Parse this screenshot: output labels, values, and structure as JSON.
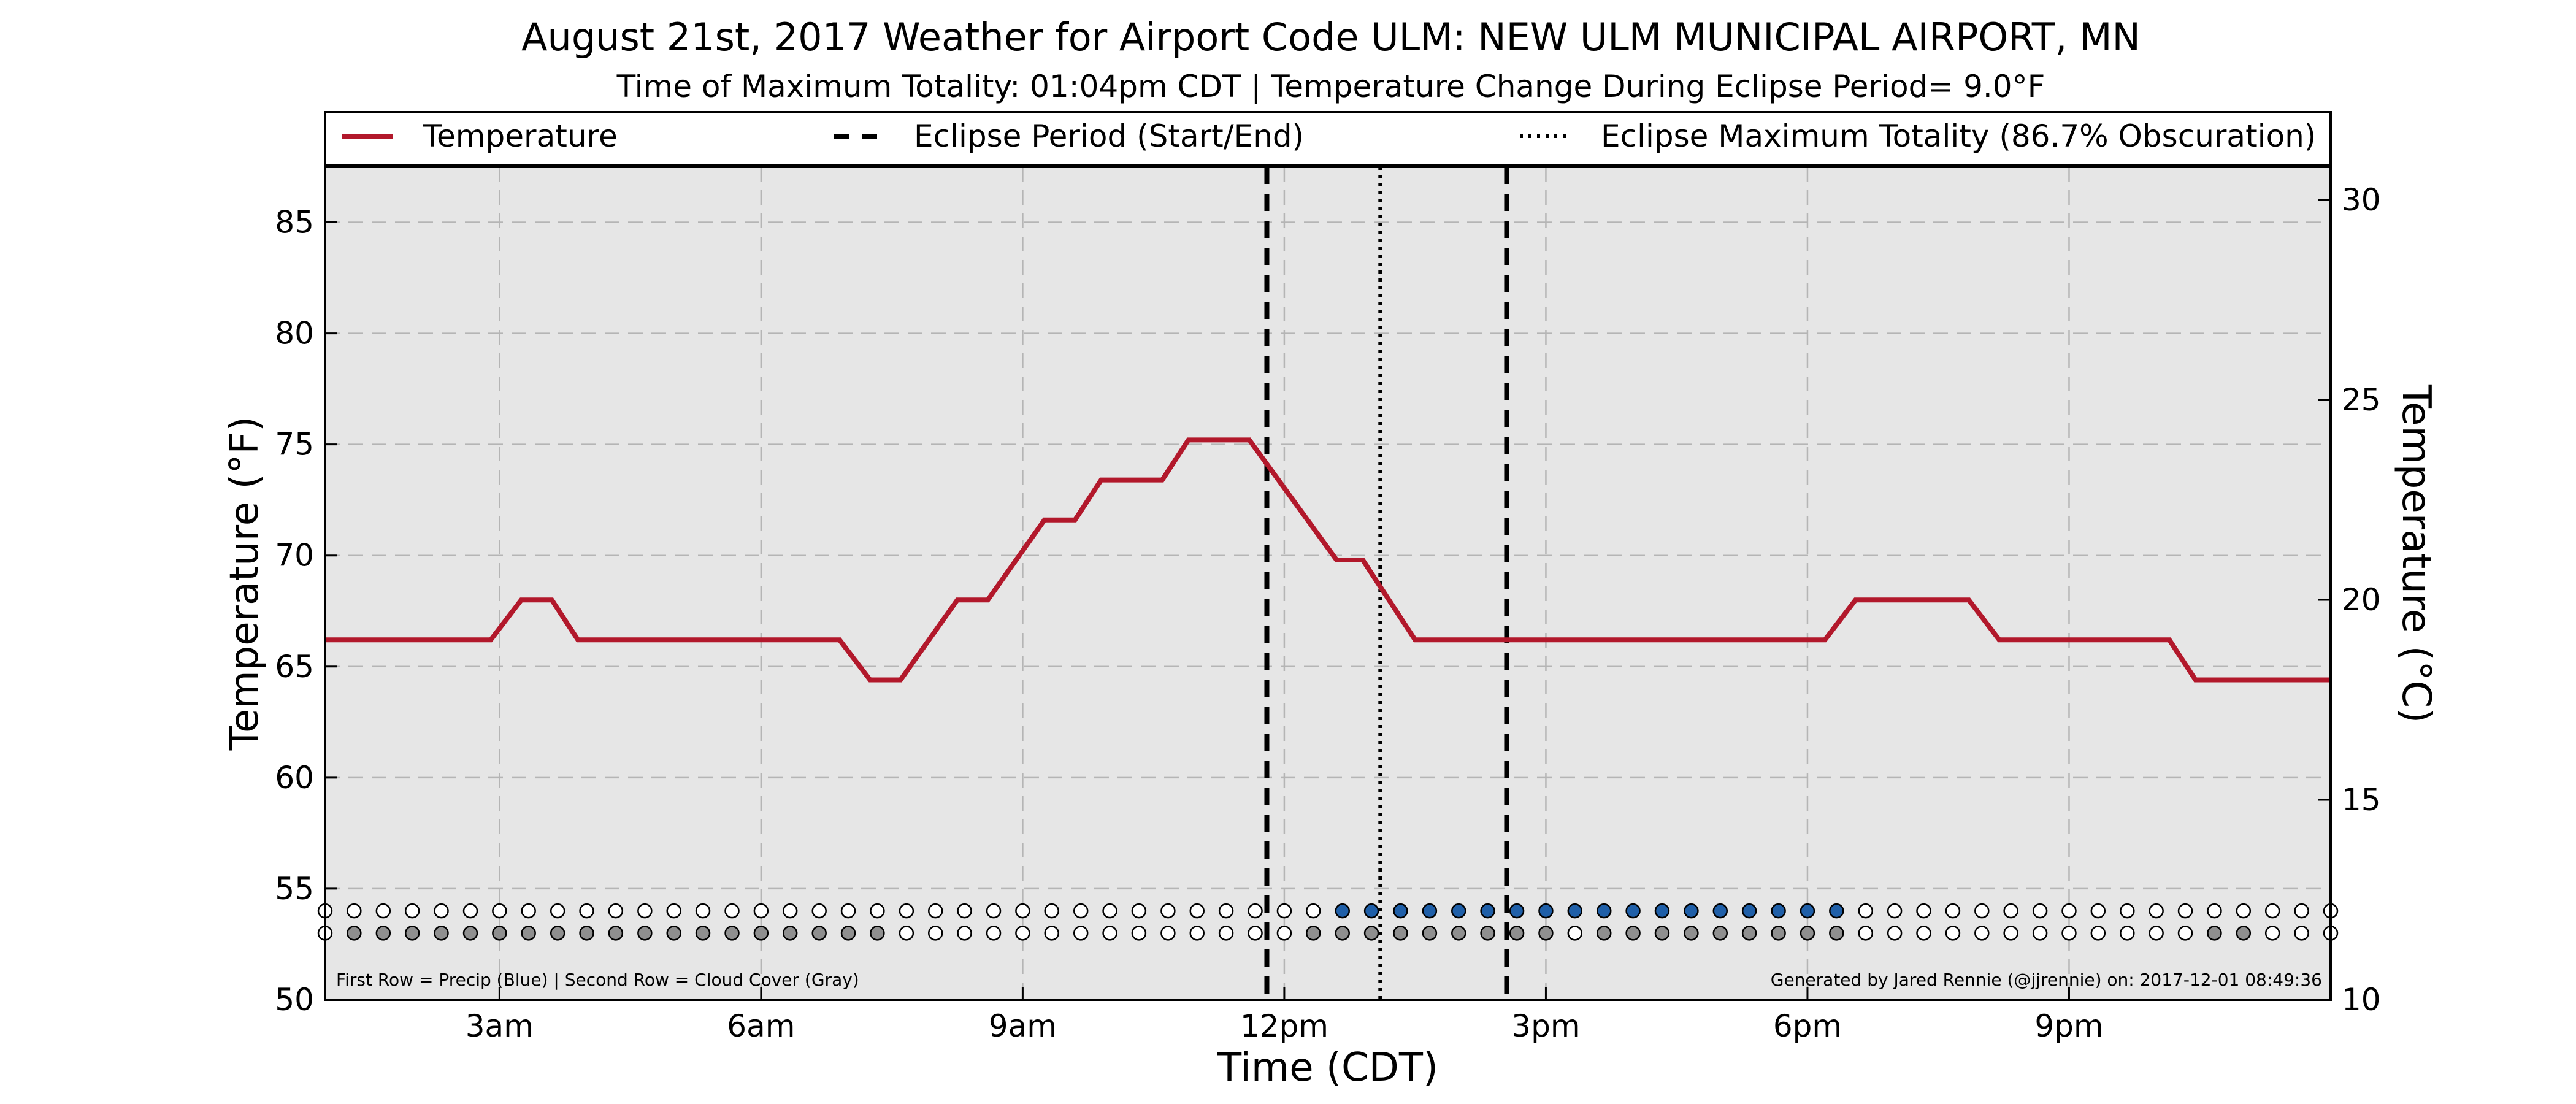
{
  "chart_data": {
    "type": "line",
    "title": "August 21st, 2017 Weather for Airport Code ULM: NEW ULM MUNICIPAL AIRPORT, MN",
    "subtitle": "Time of Maximum Totality: 01:04pm CDT | Temperature Change During Eclipse Period= 9.0°F",
    "xlabel": "Time (CDT)",
    "ylabel_left": "Temperature (°F)",
    "ylabel_right": "Temperature (°C)",
    "x_ticks": [
      {
        "hour": 3,
        "label": "3am"
      },
      {
        "hour": 6,
        "label": "6am"
      },
      {
        "hour": 9,
        "label": "9am"
      },
      {
        "hour": 12,
        "label": "12pm"
      },
      {
        "hour": 15,
        "label": "3pm"
      },
      {
        "hour": 18,
        "label": "6pm"
      },
      {
        "hour": 21,
        "label": "9pm"
      }
    ],
    "y_ticks_left": [
      50,
      55,
      60,
      65,
      70,
      75,
      80,
      85
    ],
    "y_ticks_right": [
      10,
      15,
      20,
      25,
      30
    ],
    "xlim_hours": [
      1.0,
      24.0
    ],
    "ylim_f": [
      50,
      87.5
    ],
    "ylim_c": [
      10,
      30.83
    ],
    "grid": true,
    "legend": {
      "placement": "top",
      "entries": [
        {
          "label": "Temperature",
          "style": "solid",
          "color": "#b2182b"
        },
        {
          "label": "Eclipse Period (Start/End)",
          "style": "dashed",
          "color": "#000000"
        },
        {
          "label": "Eclipse Maximum Totality (86.7% Obscuration)",
          "style": "dotted",
          "color": "#000000"
        }
      ]
    },
    "series": [
      {
        "name": "Temperature",
        "color": "#b2182b",
        "x_hours": [
          1.0,
          2.9,
          3.25,
          3.6,
          3.9,
          6.9,
          7.25,
          7.6,
          8.25,
          8.6,
          9.25,
          9.6,
          9.9,
          10.6,
          10.9,
          11.6,
          12.6,
          12.9,
          13.5,
          15.0,
          18.2,
          18.55,
          19.85,
          20.2,
          22.15,
          22.45,
          24.0
        ],
        "temp_f": [
          66.2,
          66.2,
          68.0,
          68.0,
          66.2,
          66.2,
          64.4,
          64.4,
          68.0,
          68.0,
          71.6,
          71.6,
          73.4,
          73.4,
          75.2,
          75.2,
          69.8,
          69.8,
          66.2,
          66.2,
          66.2,
          68.0,
          68.0,
          66.2,
          66.2,
          64.4,
          64.4
        ]
      }
    ],
    "eclipse_start_hour": 11.8,
    "eclipse_end_hour": 14.55,
    "eclipse_max_hour": 13.1,
    "precip_row": {
      "label": "Precip",
      "color_on": "#1f5fa8",
      "color_off": "#ffffff",
      "y_f": 54.0,
      "x_hours": [
        1.0,
        1.333,
        1.667,
        2.0,
        2.333,
        2.667,
        3.0,
        3.333,
        3.667,
        4.0,
        4.333,
        4.667,
        5.0,
        5.333,
        5.667,
        6.0,
        6.333,
        6.667,
        7.0,
        7.333,
        7.667,
        8.0,
        8.333,
        8.667,
        9.0,
        9.333,
        9.667,
        10.0,
        10.333,
        10.667,
        11.0,
        11.333,
        11.667,
        12.0,
        12.333,
        12.667,
        13.0,
        13.333,
        13.667,
        14.0,
        14.333,
        14.667,
        15.0,
        15.333,
        15.667,
        16.0,
        16.333,
        16.667,
        17.0,
        17.333,
        17.667,
        18.0,
        18.333,
        18.667,
        19.0,
        19.333,
        19.667,
        20.0,
        20.333,
        20.667,
        21.0,
        21.333,
        21.667,
        22.0,
        22.333,
        22.667,
        23.0,
        23.333,
        23.667,
        24.0
      ],
      "values": [
        0,
        0,
        0,
        0,
        0,
        0,
        0,
        0,
        0,
        0,
        0,
        0,
        0,
        0,
        0,
        0,
        0,
        0,
        0,
        0,
        0,
        0,
        0,
        0,
        0,
        0,
        0,
        0,
        0,
        0,
        0,
        0,
        0,
        0,
        0,
        1,
        1,
        1,
        1,
        1,
        1,
        1,
        1,
        1,
        1,
        1,
        1,
        1,
        1,
        1,
        1,
        1,
        1,
        0,
        0,
        0,
        0,
        0,
        0,
        0,
        0,
        0,
        0,
        0,
        0,
        0,
        0,
        0,
        0,
        0
      ]
    },
    "cloud_row": {
      "label": "Cloud Cover",
      "color_on": "#8f8f8f",
      "color_off": "#ffffff",
      "y_f": 53.0,
      "values": [
        0,
        1,
        1,
        1,
        1,
        1,
        1,
        1,
        1,
        1,
        1,
        1,
        1,
        1,
        1,
        1,
        1,
        1,
        1,
        1,
        0,
        0,
        0,
        0,
        0,
        0,
        0,
        0,
        0,
        0,
        0,
        0,
        0,
        0,
        1,
        1,
        1,
        1,
        1,
        1,
        1,
        1,
        1,
        0,
        1,
        1,
        1,
        1,
        1,
        1,
        1,
        1,
        1,
        0,
        0,
        0,
        0,
        0,
        0,
        0,
        0,
        0,
        0,
        0,
        0,
        1,
        1,
        0,
        0,
        0
      ]
    },
    "footnote_left": "First Row = Precip (Blue) | Second Row = Cloud Cover (Gray)",
    "footnote_right": "Generated by Jared Rennie (@jjrennie) on: 2017-12-01 08:49:36",
    "colors": {
      "plot_background": "#e6e6e6",
      "temperature_line": "#b2182b",
      "precip": "#1f5fa8",
      "cloud": "#8f8f8f",
      "grid": "#b5b5b5"
    }
  }
}
